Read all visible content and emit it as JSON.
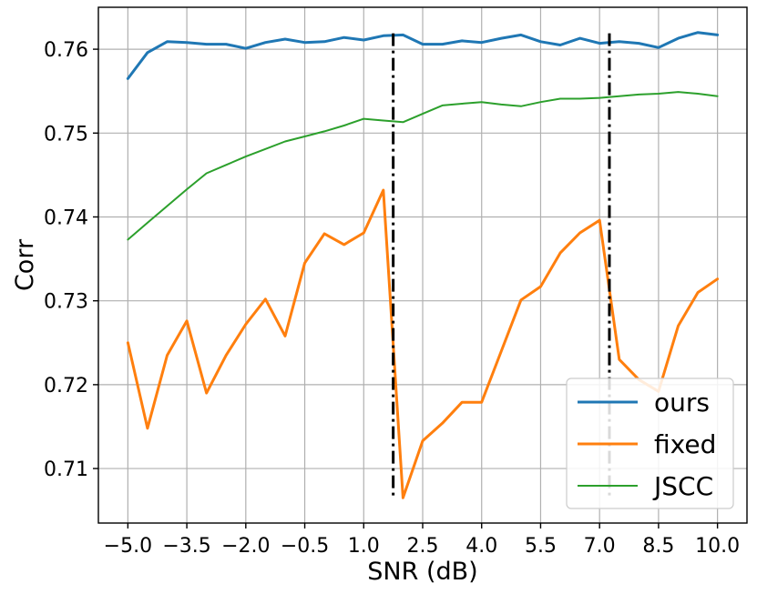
{
  "chart_data": {
    "type": "line",
    "xlabel": "SNR (dB)",
    "ylabel": "Corr",
    "xlim": [
      -5.75,
      10.75
    ],
    "ylim": [
      0.7035,
      0.765
    ],
    "grid": true,
    "legend_position": "bottom-right",
    "x_ticks": [
      -5.0,
      -3.5,
      -2.0,
      -0.5,
      1.0,
      2.5,
      4.0,
      5.5,
      7.0,
      8.5,
      10.0
    ],
    "x_tick_labels": [
      "−5.0",
      "−3.5",
      "−2.0",
      "−0.5",
      "1.0",
      "2.5",
      "4.0",
      "5.5",
      "7.0",
      "8.5",
      "10.0"
    ],
    "y_ticks": [
      0.71,
      0.72,
      0.73,
      0.74,
      0.75,
      0.76
    ],
    "y_tick_labels": [
      "0.71",
      "0.72",
      "0.73",
      "0.74",
      "0.75",
      "0.76"
    ],
    "x": [
      -5.0,
      -4.5,
      -4.0,
      -3.5,
      -3.0,
      -2.5,
      -2.0,
      -1.5,
      -1.0,
      -0.5,
      0.0,
      0.5,
      1.0,
      1.5,
      2.0,
      2.5,
      3.0,
      3.5,
      4.0,
      4.5,
      5.0,
      5.5,
      6.0,
      6.5,
      7.0,
      7.5,
      8.0,
      8.5,
      9.0,
      9.5,
      10.0
    ],
    "series": [
      {
        "name": "ours",
        "color": "#1f77b4",
        "values": [
          0.7565,
          0.7596,
          0.7609,
          0.7608,
          0.7606,
          0.7606,
          0.7601,
          0.7608,
          0.7612,
          0.7608,
          0.7609,
          0.7614,
          0.7611,
          0.7616,
          0.7617,
          0.7606,
          0.7606,
          0.761,
          0.7608,
          0.7613,
          0.7617,
          0.7609,
          0.7605,
          0.7613,
          0.7607,
          0.7609,
          0.7607,
          0.7602,
          0.7613,
          0.762,
          0.7617
        ]
      },
      {
        "name": "fixed",
        "color": "#ff7f0e",
        "values": [
          0.725,
          0.7148,
          0.7235,
          0.7276,
          0.719,
          0.7235,
          0.7272,
          0.7302,
          0.7258,
          0.7345,
          0.738,
          0.7367,
          0.7381,
          0.7432,
          0.7065,
          0.7133,
          0.7154,
          0.7179,
          0.7179,
          0.724,
          0.7301,
          0.7317,
          0.7357,
          0.7381,
          0.7396,
          0.723,
          0.7206,
          0.7192,
          0.727,
          0.731,
          0.7326
        ]
      },
      {
        "name": "JSCC",
        "color": "#2ca02c",
        "values": [
          0.7373,
          0.7393,
          0.7413,
          0.7433,
          0.7452,
          0.7462,
          0.7472,
          0.7481,
          0.749,
          0.7496,
          0.7502,
          0.7509,
          0.7517,
          0.7515,
          0.7513,
          0.7523,
          0.7533,
          0.7535,
          0.7537,
          0.7534,
          0.7532,
          0.7537,
          0.7541,
          0.7541,
          0.7542,
          0.7544,
          0.7546,
          0.7547,
          0.7549,
          0.7547,
          0.7544
        ]
      }
    ],
    "vlines": [
      {
        "x": 1.75,
        "y_range": [
          0.7063,
          0.7619
        ],
        "style": "dash-dot",
        "color": "#000000"
      },
      {
        "x": 7.25,
        "y_range": [
          0.7063,
          0.7619
        ],
        "style": "dash-dot",
        "color": "#000000"
      }
    ]
  }
}
